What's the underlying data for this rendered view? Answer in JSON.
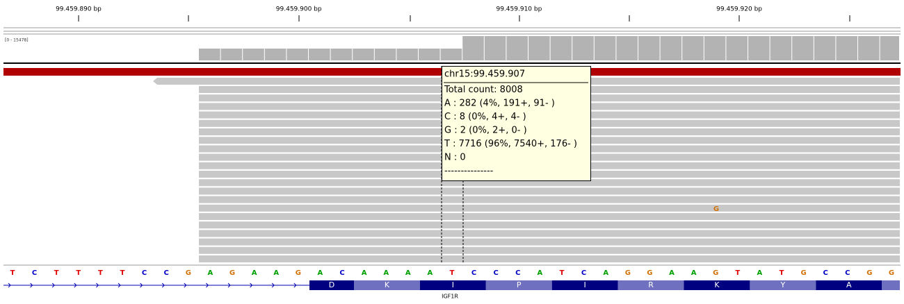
{
  "ruler": {
    "labels": [
      "99.459.890 bp",
      "99.459.900 bp",
      "99.459.910 bp",
      "99.459.920 bp"
    ]
  },
  "coverage": {
    "range": "[0 - 15478]"
  },
  "tooltip": {
    "lines": [
      "chr15:99.459.907",
      "Total count: 8008",
      "A : 282 (4%, 191+, 91- )",
      "C : 8 (0%, 4+, 4- )",
      "G : 2 (0%, 2+, 0- )",
      "T : 7716 (96%, 7540+, 176- )",
      "N : 0",
      "---------------"
    ]
  },
  "reads": {
    "mismatch": "G"
  },
  "reference": {
    "bases": [
      "T",
      "C",
      "T",
      "T",
      "T",
      "T",
      "C",
      "C",
      "G",
      "A",
      "G",
      "A",
      "A",
      "G",
      "A",
      "C",
      "A",
      "A",
      "A",
      "A",
      "T",
      "C",
      "C",
      "C",
      "A",
      "T",
      "C",
      "A",
      "G",
      "G",
      "A",
      "A",
      "G",
      "T",
      "A",
      "T",
      "G",
      "C",
      "C",
      "G",
      "G"
    ]
  },
  "translation": {
    "amino_acids": [
      "D",
      "K",
      "I",
      "P",
      "I",
      "R",
      "K",
      "Y",
      "A"
    ]
  },
  "gene": {
    "name": "IGF1R"
  }
}
